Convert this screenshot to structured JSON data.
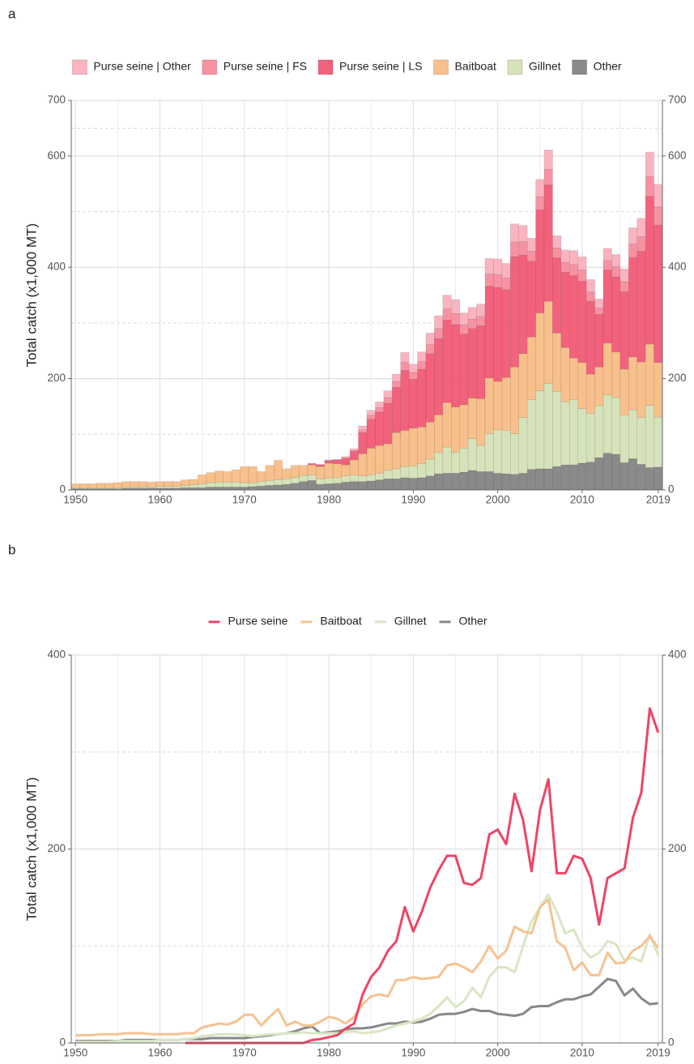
{
  "chart_data": [
    {
      "type": "stacked_bar",
      "panel_label": "a",
      "y_label": "Total catch (x1,000 MT)",
      "x": [
        1950,
        1951,
        1952,
        1953,
        1954,
        1955,
        1956,
        1957,
        1958,
        1959,
        1960,
        1961,
        1962,
        1963,
        1964,
        1965,
        1966,
        1967,
        1968,
        1969,
        1970,
        1971,
        1972,
        1973,
        1974,
        1975,
        1976,
        1977,
        1978,
        1979,
        1980,
        1981,
        1982,
        1983,
        1984,
        1985,
        1986,
        1987,
        1988,
        1989,
        1990,
        1991,
        1992,
        1993,
        1994,
        1995,
        1996,
        1997,
        1998,
        1999,
        2000,
        2001,
        2002,
        2003,
        2004,
        2005,
        2006,
        2007,
        2008,
        2009,
        2010,
        2011,
        2012,
        2013,
        2014,
        2015,
        2016,
        2017,
        2018,
        2019
      ],
      "xlim": [
        1949.5,
        2019.5
      ],
      "xticks": [
        1950,
        1960,
        1970,
        1980,
        1990,
        2000,
        2010,
        2019
      ],
      "ylim": [
        0,
        700
      ],
      "yticks": [
        0,
        200,
        400,
        600,
        700
      ],
      "grid": true,
      "series": [
        {
          "name": "Purse seine | Other",
          "color": "#f9b4c0",
          "values": [
            null,
            null,
            null,
            null,
            null,
            null,
            null,
            null,
            null,
            null,
            null,
            null,
            null,
            0,
            0,
            0,
            0,
            0,
            0,
            0,
            0,
            0,
            0,
            0,
            0,
            0,
            0,
            0,
            1,
            1,
            1,
            1,
            2,
            3,
            7,
            9,
            10,
            12,
            13,
            18,
            15,
            17,
            21,
            23,
            25,
            25,
            21,
            21,
            22,
            28,
            28,
            26,
            33,
            29,
            23,
            31,
            35,
            22,
            22,
            25,
            24,
            22,
            16,
            22,
            22,
            23,
            29,
            33,
            44,
            40
          ]
        },
        {
          "name": "Purse seine | FS",
          "color": "#f792a2",
          "values": [
            null,
            null,
            null,
            null,
            null,
            null,
            null,
            null,
            null,
            null,
            null,
            null,
            null,
            0,
            0,
            0,
            0,
            0,
            0,
            0,
            0,
            0,
            0,
            0,
            0,
            0,
            0,
            0,
            0,
            0,
            1,
            1,
            2,
            2,
            5,
            7,
            8,
            10,
            11,
            14,
            12,
            14,
            16,
            18,
            20,
            20,
            17,
            17,
            17,
            22,
            23,
            21,
            26,
            24,
            18,
            24,
            28,
            18,
            18,
            20,
            20,
            17,
            12,
            17,
            18,
            18,
            24,
            26,
            35,
            33
          ]
        },
        {
          "name": "Purse seine | LS",
          "color": "#f2627c",
          "values": [
            null,
            null,
            null,
            null,
            null,
            null,
            null,
            null,
            null,
            null,
            null,
            null,
            null,
            0,
            0,
            0,
            0,
            0,
            0,
            0,
            0,
            0,
            0,
            0,
            0,
            0,
            0,
            0,
            2,
            3,
            4,
            6,
            11,
            15,
            38,
            52,
            60,
            73,
            81,
            108,
            88,
            104,
            123,
            137,
            148,
            148,
            127,
            125,
            131,
            165,
            169,
            158,
            198,
            177,
            136,
            185,
            209,
            135,
            135,
            148,
            146,
            131,
            94,
            131,
            135,
            139,
            179,
            199,
            266,
            247
          ]
        },
        {
          "name": "Baitboat",
          "color": "#f8c08c",
          "values": [
            8,
            8,
            8,
            9,
            9,
            9,
            10,
            10,
            10,
            9,
            9,
            9,
            9,
            10,
            10,
            16,
            18,
            20,
            19,
            22,
            29,
            29,
            18,
            27,
            35,
            18,
            22,
            18,
            18,
            22,
            27,
            25,
            20,
            27,
            40,
            48,
            50,
            48,
            65,
            65,
            68,
            66,
            67,
            68,
            80,
            82,
            78,
            73,
            84,
            100,
            87,
            95,
            120,
            115,
            113,
            140,
            148,
            105,
            98,
            75,
            83,
            70,
            70,
            93,
            82,
            83,
            95,
            100,
            110,
            98
          ]
        },
        {
          "name": "Gillnet",
          "color": "#d6e3ba",
          "values": [
            1,
            1,
            1,
            1,
            1,
            2,
            2,
            2,
            2,
            2,
            3,
            3,
            3,
            4,
            5,
            7,
            8,
            9,
            9,
            9,
            8,
            7,
            8,
            9,
            9,
            10,
            10,
            11,
            10,
            10,
            10,
            10,
            11,
            12,
            10,
            11,
            12,
            15,
            18,
            20,
            22,
            25,
            30,
            38,
            47,
            37,
            43,
            57,
            47,
            68,
            78,
            78,
            73,
            100,
            125,
            140,
            153,
            135,
            113,
            117,
            98,
            88,
            93,
            105,
            102,
            85,
            88,
            84,
            112,
            90
          ]
        },
        {
          "name": "Other",
          "color": "#8a8a8a",
          "values": [
            2,
            2,
            2,
            2,
            2,
            2,
            3,
            3,
            3,
            3,
            3,
            3,
            3,
            4,
            4,
            4,
            5,
            5,
            5,
            5,
            5,
            6,
            7,
            8,
            9,
            10,
            12,
            15,
            17,
            10,
            11,
            12,
            14,
            15,
            15,
            16,
            18,
            20,
            20,
            22,
            21,
            22,
            25,
            29,
            30,
            30,
            32,
            35,
            33,
            33,
            30,
            29,
            28,
            30,
            37,
            38,
            38,
            42,
            45,
            45,
            48,
            50,
            58,
            66,
            64,
            49,
            56,
            46,
            40,
            41
          ]
        }
      ]
    },
    {
      "type": "line",
      "panel_label": "b",
      "y_label": "Total catch (x1,000 MT)",
      "x": [
        1950,
        1951,
        1952,
        1953,
        1954,
        1955,
        1956,
        1957,
        1958,
        1959,
        1960,
        1961,
        1962,
        1963,
        1964,
        1965,
        1966,
        1967,
        1968,
        1969,
        1970,
        1971,
        1972,
        1973,
        1974,
        1975,
        1976,
        1977,
        1978,
        1979,
        1980,
        1981,
        1982,
        1983,
        1984,
        1985,
        1986,
        1987,
        1988,
        1989,
        1990,
        1991,
        1992,
        1993,
        1994,
        1995,
        1996,
        1997,
        1998,
        1999,
        2000,
        2001,
        2002,
        2003,
        2004,
        2005,
        2006,
        2007,
        2008,
        2009,
        2010,
        2011,
        2012,
        2013,
        2014,
        2015,
        2016,
        2017,
        2018,
        2019
      ],
      "xlim": [
        1949.5,
        2019.5
      ],
      "xticks": [
        1950,
        1960,
        1970,
        1980,
        1990,
        2000,
        2010,
        2019
      ],
      "ylim": [
        0,
        400
      ],
      "yticks": [
        0,
        200,
        400
      ],
      "grid": true,
      "series": [
        {
          "name": "Purse seine",
          "color": "#ee4466",
          "values": [
            null,
            null,
            null,
            null,
            null,
            null,
            null,
            null,
            null,
            null,
            null,
            null,
            null,
            0,
            0,
            0,
            0,
            0,
            0,
            0,
            0,
            0,
            0,
            0,
            0,
            0,
            0,
            0,
            3,
            4,
            6,
            8,
            15,
            20,
            50,
            68,
            78,
            95,
            105,
            140,
            115,
            135,
            160,
            178,
            193,
            193,
            165,
            163,
            170,
            215,
            220,
            205,
            257,
            230,
            177,
            240,
            272,
            175,
            175,
            193,
            190,
            170,
            122,
            170,
            175,
            180,
            232,
            258,
            345,
            320
          ]
        },
        {
          "name": "Baitboat",
          "color": "#f6c292",
          "values": [
            8,
            8,
            8,
            9,
            9,
            9,
            10,
            10,
            10,
            9,
            9,
            9,
            9,
            10,
            10,
            16,
            18,
            20,
            19,
            22,
            29,
            29,
            18,
            27,
            35,
            18,
            22,
            18,
            18,
            22,
            27,
            25,
            20,
            27,
            40,
            48,
            50,
            48,
            65,
            65,
            68,
            66,
            67,
            68,
            80,
            82,
            78,
            73,
            84,
            100,
            87,
            95,
            120,
            115,
            113,
            140,
            148,
            105,
            98,
            75,
            83,
            70,
            70,
            93,
            82,
            83,
            95,
            100,
            110,
            98
          ]
        },
        {
          "name": "Gillnet",
          "color": "#d9e6c3",
          "values": [
            1,
            1,
            1,
            1,
            1,
            2,
            2,
            2,
            2,
            2,
            3,
            3,
            3,
            4,
            5,
            7,
            8,
            9,
            9,
            9,
            8,
            7,
            8,
            9,
            9,
            10,
            10,
            11,
            10,
            10,
            10,
            10,
            11,
            12,
            10,
            11,
            12,
            15,
            18,
            20,
            22,
            25,
            30,
            38,
            47,
            37,
            43,
            57,
            47,
            68,
            78,
            78,
            73,
            100,
            125,
            140,
            153,
            135,
            113,
            117,
            98,
            88,
            93,
            105,
            102,
            85,
            88,
            84,
            112,
            90
          ]
        },
        {
          "name": "Other",
          "color": "#888888",
          "values": [
            2,
            2,
            2,
            2,
            2,
            2,
            3,
            3,
            3,
            3,
            3,
            3,
            3,
            4,
            4,
            4,
            5,
            5,
            5,
            5,
            5,
            6,
            7,
            8,
            9,
            10,
            12,
            15,
            17,
            10,
            11,
            12,
            14,
            15,
            15,
            16,
            18,
            20,
            20,
            22,
            21,
            22,
            25,
            29,
            30,
            30,
            32,
            35,
            33,
            33,
            30,
            29,
            28,
            30,
            37,
            38,
            38,
            42,
            45,
            45,
            48,
            50,
            58,
            66,
            64,
            49,
            56,
            46,
            40,
            41
          ]
        }
      ]
    }
  ]
}
